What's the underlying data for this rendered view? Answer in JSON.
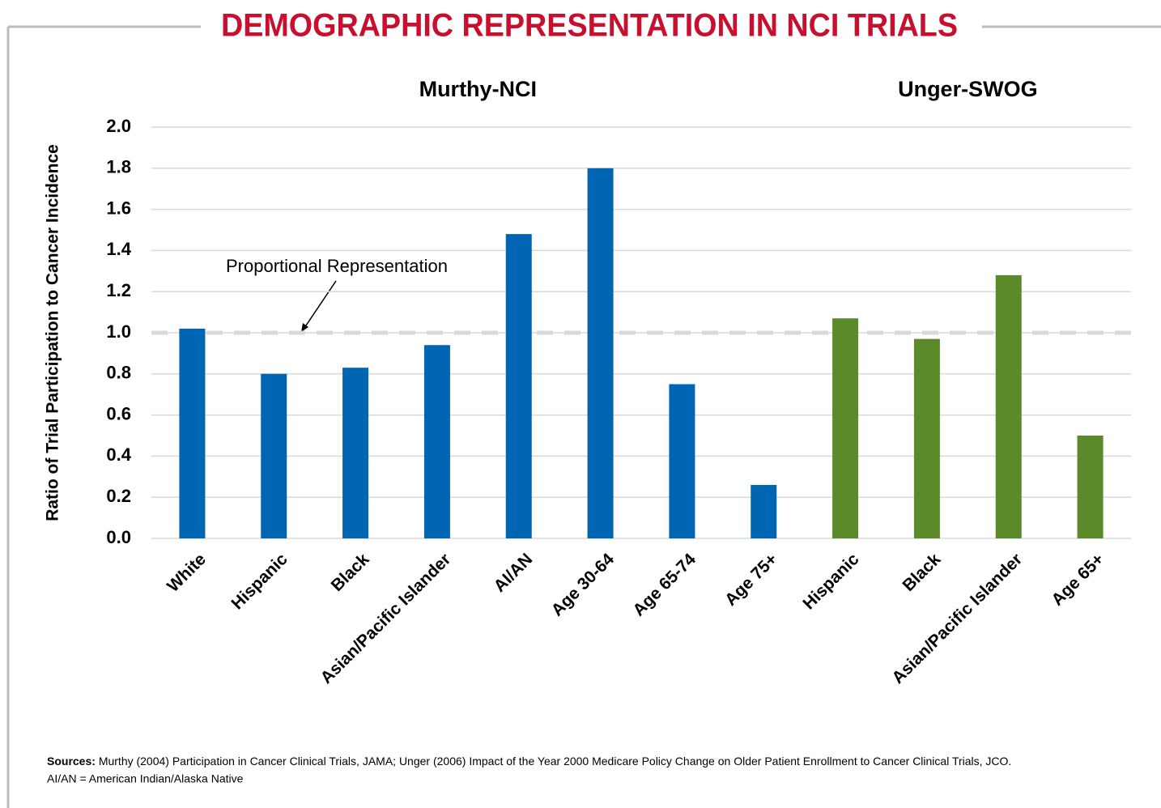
{
  "chart_data": {
    "type": "bar",
    "title": "DEMOGRAPHIC REPRESENTATION IN NCI TRIALS",
    "y_label": "Ratio of Trial Participation to Cancer Incidence",
    "categories": [
      "White",
      "Hispanic",
      "Black",
      "Asian/Pacific Islander",
      "AI/AN",
      "Age 30-64",
      "Age 65-74",
      "Age 75+",
      "Hispanic",
      "Black",
      "Asian/Pacific Islander",
      "Age 65+"
    ],
    "series": [
      {
        "name": "Murthy-NCI",
        "color": "#0066b3",
        "values": [
          1.02,
          0.8,
          0.83,
          0.94,
          1.48,
          1.8,
          0.75,
          0.26,
          null,
          null,
          null,
          null
        ]
      },
      {
        "name": "Unger-SWOG",
        "color": "#5a8a2a",
        "values": [
          null,
          null,
          null,
          null,
          null,
          null,
          null,
          null,
          1.07,
          0.97,
          1.28,
          0.5
        ]
      }
    ],
    "ylim": [
      0,
      2
    ],
    "yticks": [
      {
        "value": 0,
        "label": "0.0"
      },
      0.2,
      0.4,
      0.6,
      0.8,
      {
        "value": 1,
        "label": "1.0"
      },
      1.2,
      1.4,
      1.6,
      1.8,
      {
        "value": 2,
        "label": "2.0"
      }
    ],
    "grid": true,
    "reference_line": {
      "value": 1,
      "label": "Proportional Representation"
    },
    "sources_label": "Sources:",
    "sources_text": "Murthy (2004) Participation in Cancer Clinical Trials, JAMA; Unger (2006) Impact of the Year 2000 Medicare Policy Change on Older Patient Enrollment to Cancer Clinical Trials, JCO.",
    "footnote": "AI/AN = American Indian/Alaska Native"
  }
}
